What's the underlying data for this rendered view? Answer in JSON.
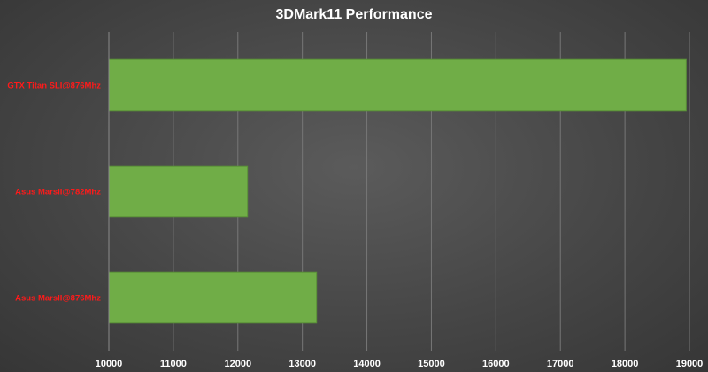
{
  "chart_data": {
    "type": "bar",
    "orientation": "horizontal",
    "title": "3DMark11 Performance",
    "categories": [
      "GTX Titan SLI@876Mhz",
      "Asus MarsII@782Mhz",
      "Asus MarsII@876Mhz"
    ],
    "values": [
      18950,
      12150,
      13220
    ],
    "xlim": [
      10000,
      19000
    ],
    "xticks": [
      10000,
      11000,
      12000,
      13000,
      14000,
      15000,
      16000,
      17000,
      18000,
      19000
    ],
    "xlabel": "",
    "ylabel": "",
    "grid": "vertical",
    "legend": "none"
  },
  "colors": {
    "bar": "#70ad47",
    "bar_edge": "#5a8f38",
    "category_label": "#ff1a1a",
    "text": "#ffffff",
    "grid": "#777777",
    "axis": "#8a8a8a"
  }
}
